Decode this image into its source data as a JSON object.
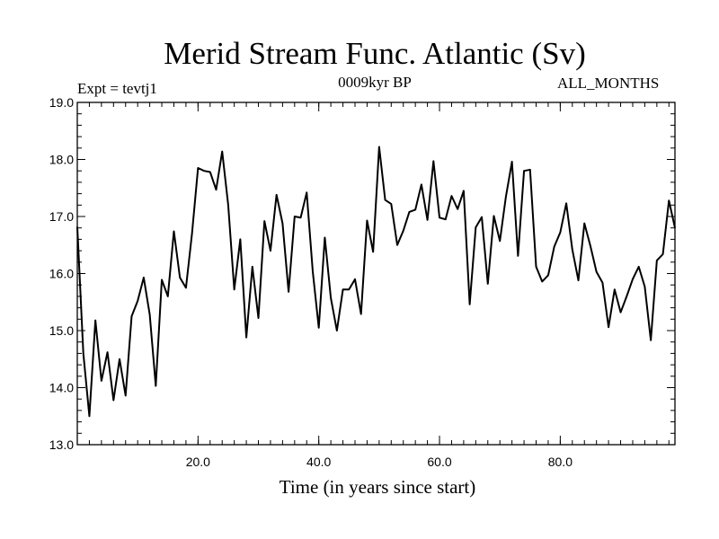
{
  "chart_data": {
    "type": "line",
    "title": "Merid Stream Func. Atlantic (Sv)",
    "subtitle": "0009kyr BP",
    "left_annotation": "Expt = tevtj1",
    "right_annotation": "ALL_MONTHS",
    "xlabel": "Time (in years since start)",
    "ylabel": "",
    "xlim": [
      0,
      99
    ],
    "ylim": [
      13.0,
      19.0
    ],
    "x_ticks": [
      20,
      40,
      60,
      80
    ],
    "x_tick_labels": [
      "20.0",
      "40.0",
      "60.0",
      "80.0"
    ],
    "y_ticks": [
      13,
      14,
      15,
      16,
      17,
      18,
      19
    ],
    "y_tick_labels": [
      "13.0",
      "14.0",
      "15.0",
      "16.0",
      "17.0",
      "18.0",
      "19.0"
    ],
    "grid": false,
    "series": [
      {
        "name": "Merid Stream Func. Atlantic",
        "color": "#000000",
        "x": [
          0,
          1,
          2,
          3,
          4,
          5,
          6,
          7,
          8,
          9,
          10,
          11,
          12,
          13,
          14,
          15,
          16,
          17,
          18,
          19,
          20,
          21,
          22,
          23,
          24,
          25,
          26,
          27,
          28,
          29,
          30,
          31,
          32,
          33,
          34,
          35,
          36,
          37,
          38,
          39,
          40,
          41,
          42,
          43,
          44,
          45,
          46,
          47,
          48,
          49,
          50,
          51,
          52,
          53,
          54,
          55,
          56,
          57,
          58,
          59,
          60,
          61,
          62,
          63,
          64,
          65,
          66,
          67,
          68,
          69,
          70,
          71,
          72,
          73,
          74,
          75,
          76,
          77,
          78,
          79,
          80,
          81,
          82,
          83,
          84,
          85,
          86,
          87,
          88,
          89,
          90,
          91,
          92,
          93,
          94,
          95,
          96,
          97,
          98,
          99
        ],
        "values": [
          16.82,
          14.6,
          13.5,
          15.18,
          14.12,
          14.62,
          13.78,
          14.5,
          13.86,
          15.25,
          15.52,
          15.93,
          15.28,
          14.03,
          15.89,
          15.6,
          16.74,
          15.93,
          15.75,
          16.7,
          17.85,
          17.8,
          17.78,
          17.47,
          18.14,
          17.2,
          15.72,
          16.6,
          14.88,
          16.12,
          15.22,
          16.92,
          16.4,
          17.38,
          16.88,
          15.68,
          17.0,
          16.98,
          17.42,
          16.04,
          15.05,
          16.63,
          15.57,
          15.0,
          15.72,
          15.72,
          15.9,
          15.29,
          16.93,
          16.38,
          18.22,
          17.29,
          17.22,
          16.5,
          16.75,
          17.08,
          17.12,
          17.56,
          16.94,
          17.97,
          16.98,
          16.95,
          17.36,
          17.13,
          17.45,
          15.46,
          16.81,
          16.99,
          15.82,
          17.01,
          16.57,
          17.35,
          17.96,
          16.31,
          17.8,
          17.82,
          16.12,
          15.86,
          15.97,
          16.47,
          16.72,
          17.23,
          16.42,
          15.88,
          16.88,
          16.48,
          16.03,
          15.84,
          15.06,
          15.72,
          15.32,
          15.6,
          15.9,
          16.12,
          15.77,
          14.83,
          16.23,
          16.34,
          17.28,
          16.8
        ]
      }
    ]
  }
}
